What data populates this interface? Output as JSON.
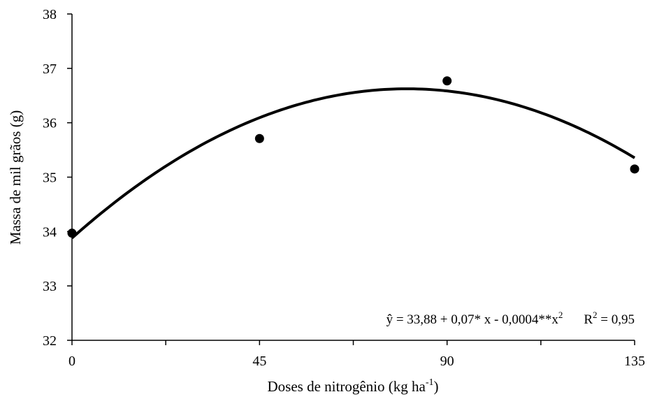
{
  "chart_data": {
    "type": "scatter",
    "xlabel": "Doses de nitrogênio (kg ha",
    "xlabel_sup": "-1",
    "xlabel_end": ")",
    "ylabel": "Massa de mil grãos (g)",
    "xlim": [
      0,
      135
    ],
    "ylim": [
      32,
      38
    ],
    "x_ticks": [
      0,
      45,
      90,
      135
    ],
    "y_ticks": [
      32,
      33,
      34,
      35,
      36,
      37,
      38
    ],
    "x_ticklabels": [
      "0",
      "45",
      "90",
      "135"
    ],
    "y_ticklabels": [
      "32",
      "33",
      "34",
      "35",
      "36",
      "37",
      "38"
    ],
    "grid": false,
    "points": [
      {
        "x": 0,
        "y": 33.97
      },
      {
        "x": 45,
        "y": 35.71
      },
      {
        "x": 90,
        "y": 36.77
      },
      {
        "x": 135,
        "y": 35.15
      }
    ],
    "fit": {
      "intercept": 33.88,
      "b1": 0.0683,
      "b2": -0.000425
    },
    "equation": {
      "part1": "ŷ = 33,88 + 0,07*  x - 0,0004**x",
      "sup1": "2",
      "part2": "R",
      "sup2": "2",
      "part3": " = 0,95"
    }
  }
}
